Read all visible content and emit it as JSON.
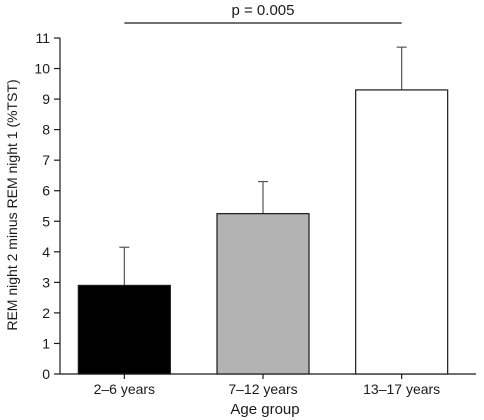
{
  "chart_data": {
    "type": "bar",
    "categories": [
      "2–6 years",
      "7–12 years",
      "13–17 years"
    ],
    "values": [
      2.9,
      5.25,
      9.3
    ],
    "errors": [
      1.25,
      1.05,
      1.4
    ],
    "bar_colors": [
      "#000000",
      "#b3b3b3",
      "#ffffff"
    ],
    "xlabel": "Age group",
    "ylabel": "REM night 2 minus REM night 1 (%TST)",
    "ylim": [
      0,
      11
    ],
    "yticks": [
      0,
      1,
      2,
      3,
      4,
      5,
      6,
      7,
      8,
      9,
      10,
      11
    ],
    "annotation": "p = 0.005",
    "grid": false
  }
}
